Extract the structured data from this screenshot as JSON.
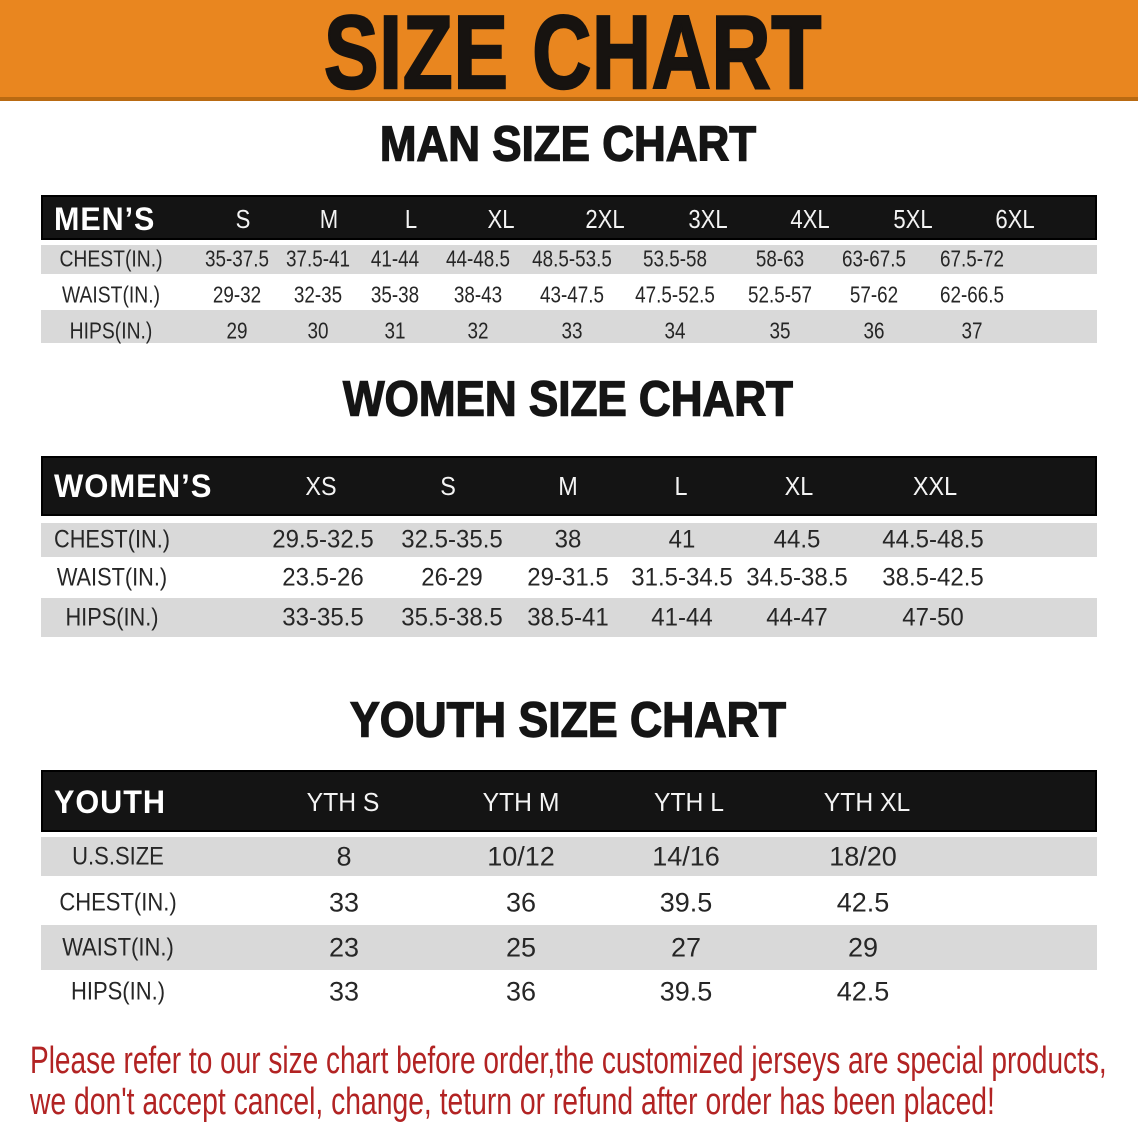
{
  "banner": {
    "title": "SIZE CHART"
  },
  "sections": [
    {
      "heading": "MAN SIZE CHART",
      "table": {
        "corner": "MEN’S",
        "sizes": [
          "S",
          "M",
          "L",
          "XL",
          "2XL",
          "3XL",
          "4XL",
          "5XL",
          "6XL"
        ],
        "rows": [
          {
            "label": "CHEST(IN.)",
            "values": [
              "35-37.5",
              "37.5-41",
              "41-44",
              "44-48.5",
              "48.5-53.5",
              "53.5-58",
              "58-63",
              "63-67.5",
              "67.5-72"
            ]
          },
          {
            "label": "WAIST(IN.)",
            "values": [
              "29-32",
              "32-35",
              "35-38",
              "38-43",
              "43-47.5",
              "47.5-52.5",
              "52.5-57",
              "57-62",
              "62-66.5"
            ]
          },
          {
            "label": "HIPS(IN.)",
            "values": [
              "29",
              "30",
              "31",
              "32",
              "33",
              "34",
              "35",
              "36",
              "37"
            ]
          }
        ]
      }
    },
    {
      "heading": "WOMEN SIZE CHART",
      "table": {
        "corner": "WOMEN’S",
        "sizes": [
          "XS",
          "S",
          "M",
          "L",
          "XL",
          "XXL"
        ],
        "rows": [
          {
            "label": "CHEST(IN.)",
            "values": [
              "29.5-32.5",
              "32.5-35.5",
              "38",
              "41",
              "44.5",
              "44.5-48.5"
            ]
          },
          {
            "label": "WAIST(IN.)",
            "values": [
              "23.5-26",
              "26-29",
              "29-31.5",
              "31.5-34.5",
              "34.5-38.5",
              "38.5-42.5"
            ]
          },
          {
            "label": "HIPS(IN.)",
            "values": [
              "33-35.5",
              "35.5-38.5",
              "38.5-41",
              "41-44",
              "44-47",
              "47-50"
            ]
          }
        ]
      }
    },
    {
      "heading": "YOUTH SIZE CHART",
      "table": {
        "corner": "YOUTH",
        "sizes": [
          "YTH S",
          "YTH M",
          "YTH L",
          "YTH XL"
        ],
        "rows": [
          {
            "label": "U.S.SIZE",
            "values": [
              "8",
              "10/12",
              "14/16",
              "18/20"
            ]
          },
          {
            "label": "CHEST(IN.)",
            "values": [
              "33",
              "36",
              "39.5",
              "42.5"
            ]
          },
          {
            "label": "WAIST(IN.)",
            "values": [
              "23",
              "25",
              "27",
              "29"
            ]
          },
          {
            "label": "HIPS(IN.)",
            "values": [
              "33",
              "36",
              "39.5",
              "42.5"
            ]
          }
        ]
      }
    }
  ],
  "footer": {
    "lines": [
      "Please refer to our size chart before order,the customized jerseys are special products,",
      "we don't accept cancel, change, teturn or refund after order has been placed!"
    ]
  },
  "colors": {
    "banner_bg": "#e9861f",
    "banner_edge": "#b96a12",
    "banner_text": "#171310",
    "bar_bg": "#141414",
    "bar_text": "#f4f4f4",
    "row_gray": "#d9d9d9",
    "data_text": "#262626",
    "footer_red": "#b22323"
  }
}
